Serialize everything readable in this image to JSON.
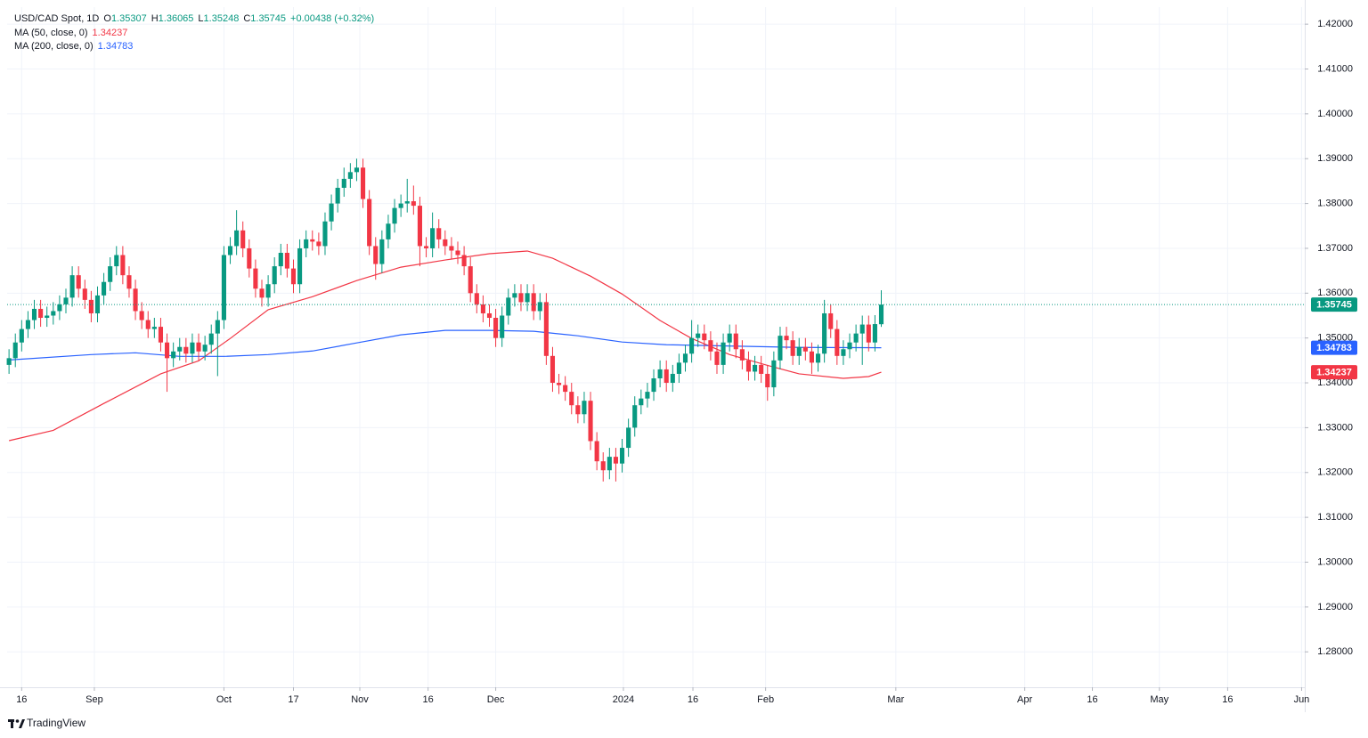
{
  "header": {
    "symbol": "USD/CAD Spot, 1D",
    "o_label": "O",
    "h_label": "H",
    "l_label": "L",
    "c_label": "C",
    "change": "+0.00438 (+0.32%)"
  },
  "brand": "TradingView",
  "chart_data": {
    "type": "candlestick",
    "xlim": [
      -0.3,
      205
    ],
    "ylim": [
      1.2721,
      1.4238
    ],
    "grid": true,
    "up_color": "#089981",
    "down_color": "#f23645",
    "yticks": [
      {
        "value": 1.28,
        "label": "1.28000"
      },
      {
        "value": 1.29,
        "label": "1.29000"
      },
      {
        "value": 1.3,
        "label": "1.30000"
      },
      {
        "value": 1.31,
        "label": "1.31000"
      },
      {
        "value": 1.32,
        "label": "1.32000"
      },
      {
        "value": 1.33,
        "label": "1.33000"
      },
      {
        "value": 1.34,
        "label": "1.34000"
      },
      {
        "value": 1.35,
        "label": "1.35000"
      },
      {
        "value": 1.36,
        "label": "1.36000"
      },
      {
        "value": 1.37,
        "label": "1.37000"
      },
      {
        "value": 1.38,
        "label": "1.38000"
      },
      {
        "value": 1.39,
        "label": "1.39000"
      },
      {
        "value": 1.4,
        "label": "1.40000"
      },
      {
        "value": 1.41,
        "label": "1.41000"
      },
      {
        "value": 1.42,
        "label": "1.42000"
      }
    ],
    "xticks": [
      {
        "value": 2,
        "label": "16"
      },
      {
        "value": 13.5,
        "label": "Sep"
      },
      {
        "value": 34,
        "label": "Oct"
      },
      {
        "value": 45,
        "label": "17"
      },
      {
        "value": 55.5,
        "label": "Nov"
      },
      {
        "value": 66.3,
        "label": "16"
      },
      {
        "value": 77,
        "label": "Dec"
      },
      {
        "value": 97.2,
        "label": "2024"
      },
      {
        "value": 108.2,
        "label": "16"
      },
      {
        "value": 119.7,
        "label": "Feb"
      },
      {
        "value": 140.3,
        "label": "Mar"
      },
      {
        "value": 160.7,
        "label": "Apr"
      },
      {
        "value": 171.4,
        "label": "16"
      },
      {
        "value": 182,
        "label": "May"
      },
      {
        "value": 192.8,
        "label": "16"
      },
      {
        "value": 204.5,
        "label": "Jun"
      }
    ],
    "open": [
      1.344,
      1.3455,
      1.349,
      1.352,
      1.354,
      1.3565,
      1.3545,
      1.355,
      1.356,
      1.3575,
      1.359,
      1.364,
      1.361,
      1.3585,
      1.3555,
      1.3595,
      1.3625,
      1.366,
      1.3685,
      1.364,
      1.361,
      1.356,
      1.354,
      1.352,
      1.3525,
      1.349,
      1.3455,
      1.347,
      1.348,
      1.3465,
      1.349,
      1.347,
      1.3485,
      1.351,
      1.354,
      1.3685,
      1.3705,
      1.374,
      1.37,
      1.3655,
      1.361,
      1.359,
      1.362,
      1.366,
      1.369,
      1.3655,
      1.362,
      1.37,
      1.372,
      1.3715,
      1.3705,
      1.376,
      1.38,
      1.3835,
      1.3855,
      1.387,
      1.388,
      1.381,
      1.3705,
      1.3665,
      1.372,
      1.3755,
      1.379,
      1.38,
      1.3805,
      1.3795,
      1.3705,
      1.37,
      1.3745,
      1.372,
      1.3705,
      1.3695,
      1.3685,
      1.366,
      1.36,
      1.3575,
      1.3555,
      1.3545,
      1.35,
      1.355,
      1.359,
      1.36,
      1.358,
      1.36,
      1.356,
      1.358,
      1.346,
      1.34,
      1.3395,
      1.338,
      1.335,
      1.333,
      1.336,
      1.327,
      1.3225,
      1.3205,
      1.3235,
      1.322,
      1.3255,
      1.33,
      1.335,
      1.3365,
      1.338,
      1.341,
      1.343,
      1.34,
      1.342,
      1.3445,
      1.3465,
      1.35,
      1.351,
      1.3495,
      1.347,
      1.344,
      1.349,
      1.351,
      1.3475,
      1.345,
      1.3425,
      1.344,
      1.342,
      1.339,
      1.345,
      1.3505,
      1.3495,
      1.346,
      1.348,
      1.347,
      1.3445,
      1.3465,
      1.3555,
      1.352,
      1.346,
      1.3475,
      1.349,
      1.351,
      1.353,
      1.349,
      1.35307
    ],
    "high": [
      1.3475,
      1.351,
      1.354,
      1.356,
      1.3585,
      1.3585,
      1.357,
      1.358,
      1.3595,
      1.361,
      1.366,
      1.366,
      1.363,
      1.3605,
      1.3615,
      1.3645,
      1.368,
      1.3705,
      1.3705,
      1.366,
      1.363,
      1.358,
      1.356,
      1.3545,
      1.3545,
      1.351,
      1.349,
      1.35,
      1.35,
      1.351,
      1.351,
      1.3505,
      1.353,
      1.356,
      1.3705,
      1.3725,
      1.3785,
      1.376,
      1.372,
      1.3675,
      1.363,
      1.364,
      1.368,
      1.371,
      1.371,
      1.3675,
      1.372,
      1.374,
      1.374,
      1.3735,
      1.378,
      1.382,
      1.3855,
      1.388,
      1.389,
      1.39,
      1.39,
      1.383,
      1.3725,
      1.374,
      1.3775,
      1.381,
      1.382,
      1.3855,
      1.384,
      1.3815,
      1.3725,
      1.378,
      1.3765,
      1.374,
      1.3725,
      1.3715,
      1.3705,
      1.368,
      1.362,
      1.3595,
      1.3575,
      1.3565,
      1.357,
      1.361,
      1.362,
      1.362,
      1.362,
      1.362,
      1.36,
      1.36,
      1.348,
      1.342,
      1.3415,
      1.34,
      1.337,
      1.338,
      1.338,
      1.329,
      1.3245,
      1.3255,
      1.3255,
      1.3275,
      1.332,
      1.337,
      1.3385,
      1.34,
      1.343,
      1.345,
      1.345,
      1.344,
      1.3465,
      1.3485,
      1.354,
      1.353,
      1.353,
      1.3515,
      1.349,
      1.351,
      1.353,
      1.353,
      1.3495,
      1.347,
      1.346,
      1.346,
      1.344,
      1.347,
      1.3525,
      1.3525,
      1.3515,
      1.35,
      1.35,
      1.349,
      1.3485,
      1.3585,
      1.3575,
      1.354,
      1.3495,
      1.351,
      1.353,
      1.355,
      1.355,
      1.3551,
      1.36065
    ],
    "low": [
      1.342,
      1.3435,
      1.347,
      1.35,
      1.352,
      1.3525,
      1.3525,
      1.353,
      1.354,
      1.3555,
      1.357,
      1.359,
      1.3565,
      1.3535,
      1.3535,
      1.3575,
      1.3605,
      1.364,
      1.362,
      1.359,
      1.354,
      1.352,
      1.35,
      1.35,
      1.347,
      1.338,
      1.3435,
      1.345,
      1.3445,
      1.3445,
      1.345,
      1.345,
      1.3465,
      1.3415,
      1.352,
      1.3665,
      1.3685,
      1.368,
      1.3635,
      1.359,
      1.357,
      1.357,
      1.36,
      1.364,
      1.3635,
      1.36,
      1.36,
      1.368,
      1.3695,
      1.3685,
      1.3685,
      1.374,
      1.378,
      1.3815,
      1.3835,
      1.385,
      1.379,
      1.3685,
      1.363,
      1.3645,
      1.37,
      1.3735,
      1.377,
      1.378,
      1.3775,
      1.366,
      1.368,
      1.368,
      1.37,
      1.3685,
      1.3675,
      1.3665,
      1.364,
      1.358,
      1.3555,
      1.3535,
      1.3525,
      1.348,
      1.348,
      1.353,
      1.357,
      1.356,
      1.356,
      1.354,
      1.354,
      1.344,
      1.338,
      1.3375,
      1.336,
      1.333,
      1.331,
      1.331,
      1.325,
      1.3205,
      1.318,
      1.3185,
      1.318,
      1.32,
      1.3235,
      1.328,
      1.333,
      1.3345,
      1.336,
      1.339,
      1.338,
      1.338,
      1.34,
      1.3425,
      1.3445,
      1.348,
      1.3475,
      1.345,
      1.342,
      1.342,
      1.347,
      1.3455,
      1.343,
      1.3405,
      1.3405,
      1.34,
      1.336,
      1.337,
      1.343,
      1.3475,
      1.344,
      1.344,
      1.345,
      1.342,
      1.3425,
      1.3445,
      1.35,
      1.344,
      1.344,
      1.3455,
      1.347,
      1.344,
      1.347,
      1.347,
      1.35248
    ],
    "close": [
      1.3455,
      1.349,
      1.352,
      1.354,
      1.3565,
      1.3545,
      1.355,
      1.356,
      1.3575,
      1.359,
      1.364,
      1.361,
      1.3585,
      1.3555,
      1.3595,
      1.3625,
      1.366,
      1.3685,
      1.364,
      1.361,
      1.356,
      1.354,
      1.352,
      1.3525,
      1.349,
      1.3455,
      1.347,
      1.348,
      1.3465,
      1.349,
      1.347,
      1.3485,
      1.351,
      1.354,
      1.3685,
      1.3705,
      1.374,
      1.37,
      1.3655,
      1.361,
      1.359,
      1.362,
      1.366,
      1.369,
      1.3655,
      1.362,
      1.37,
      1.372,
      1.3715,
      1.3705,
      1.376,
      1.38,
      1.3835,
      1.3855,
      1.387,
      1.388,
      1.381,
      1.3705,
      1.3665,
      1.372,
      1.3755,
      1.379,
      1.38,
      1.3805,
      1.3795,
      1.3705,
      1.37,
      1.3745,
      1.372,
      1.3705,
      1.3695,
      1.3685,
      1.366,
      1.36,
      1.3575,
      1.3555,
      1.3545,
      1.35,
      1.355,
      1.359,
      1.36,
      1.358,
      1.36,
      1.356,
      1.358,
      1.346,
      1.34,
      1.3395,
      1.338,
      1.335,
      1.333,
      1.336,
      1.327,
      1.3225,
      1.3205,
      1.3235,
      1.322,
      1.3255,
      1.33,
      1.335,
      1.3365,
      1.338,
      1.341,
      1.343,
      1.34,
      1.342,
      1.3445,
      1.3465,
      1.35,
      1.351,
      1.3495,
      1.347,
      1.344,
      1.349,
      1.351,
      1.3475,
      1.345,
      1.3425,
      1.344,
      1.342,
      1.339,
      1.345,
      1.3505,
      1.3495,
      1.346,
      1.348,
      1.347,
      1.3445,
      1.3465,
      1.3555,
      1.352,
      1.346,
      1.3475,
      1.349,
      1.351,
      1.353,
      1.349,
      1.3531,
      1.35745
    ],
    "series": [
      {
        "name": "MA (50, close, 0)",
        "color": "#f23645",
        "x": [
          0,
          7,
          15,
          24,
          30,
          35,
          41,
          48,
          55,
          62,
          69,
          76,
          82,
          86,
          92,
          97,
          103,
          108,
          114,
          120,
          125,
          132,
          136,
          138
        ],
        "values": [
          1.3271,
          1.3294,
          1.3354,
          1.342,
          1.3449,
          1.3499,
          1.3563,
          1.3592,
          1.3628,
          1.3658,
          1.3674,
          1.3688,
          1.3694,
          1.3678,
          1.3638,
          1.3598,
          1.3539,
          1.3499,
          1.3463,
          1.3439,
          1.342,
          1.341,
          1.3414,
          1.34237
        ]
      },
      {
        "name": "MA (200, close, 0)",
        "color": "#2962ff",
        "x": [
          0,
          13,
          20,
          27,
          34,
          41,
          48,
          55,
          62,
          69,
          76,
          83,
          90,
          97,
          104,
          111,
          118,
          125,
          138
        ],
        "values": [
          1.3451,
          1.3463,
          1.3467,
          1.3459,
          1.3459,
          1.3463,
          1.3471,
          1.3489,
          1.3507,
          1.3517,
          1.3517,
          1.3515,
          1.3505,
          1.3491,
          1.3485,
          1.3483,
          1.3481,
          1.3479,
          1.34783
        ]
      }
    ]
  }
}
